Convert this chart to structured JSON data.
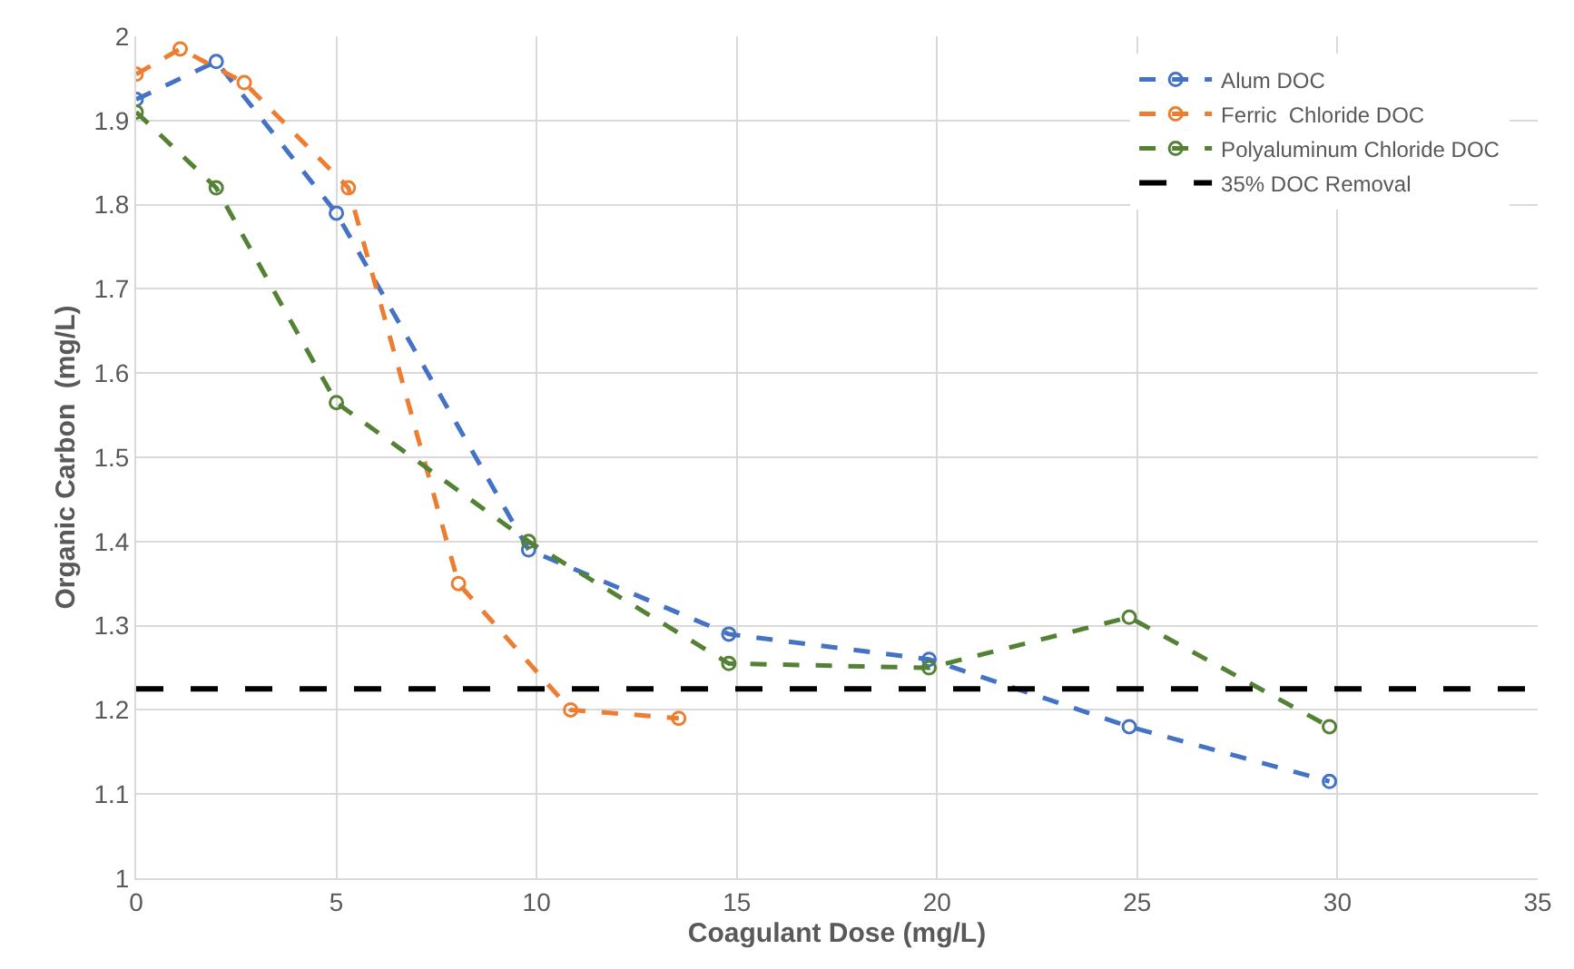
{
  "chart_data": {
    "type": "line",
    "xlabel": "Coagulant Dose (mg/L)",
    "ylabel": "Organic Carbon  (mg/L)",
    "xlim": [
      0,
      35
    ],
    "xticks": [
      0,
      5,
      10,
      15,
      20,
      25,
      30,
      35
    ],
    "ylim": [
      1,
      2
    ],
    "yticks": [
      1,
      1.1,
      1.2,
      1.3,
      1.4,
      1.5,
      1.6,
      1.7,
      1.8,
      1.9,
      2
    ],
    "grid": true,
    "legend": "top right",
    "marker": "circle",
    "line_style": "dashed",
    "series": [
      {
        "name": "Alum DOC",
        "color": "#4472c4",
        "x": [
          0,
          2,
          5,
          9.8,
          14.8,
          19.8,
          24.8,
          29.8
        ],
        "values": [
          1.925,
          1.97,
          1.79,
          1.39,
          1.29,
          1.26,
          1.18,
          1.115
        ]
      },
      {
        "name": "Ferric  Chloride DOC",
        "color": "#ed7d31",
        "x": [
          0,
          1.1,
          2.7,
          5.3,
          8.05,
          10.85,
          13.55
        ],
        "values": [
          1.955,
          1.985,
          1.945,
          1.82,
          1.35,
          1.2,
          1.19
        ]
      },
      {
        "name": "Polyaluminum Chloride DOC",
        "color": "#548235",
        "x": [
          0,
          2,
          5,
          9.8,
          14.8,
          19.8,
          24.8,
          29.8
        ],
        "values": [
          1.91,
          1.82,
          1.565,
          1.4,
          1.255,
          1.25,
          1.31,
          1.18
        ]
      }
    ],
    "ref_lines": [
      {
        "axis": "y",
        "value": 1.225,
        "label": "35% DOC Removal",
        "color": "#000000",
        "line_style": "dashed"
      }
    ]
  }
}
